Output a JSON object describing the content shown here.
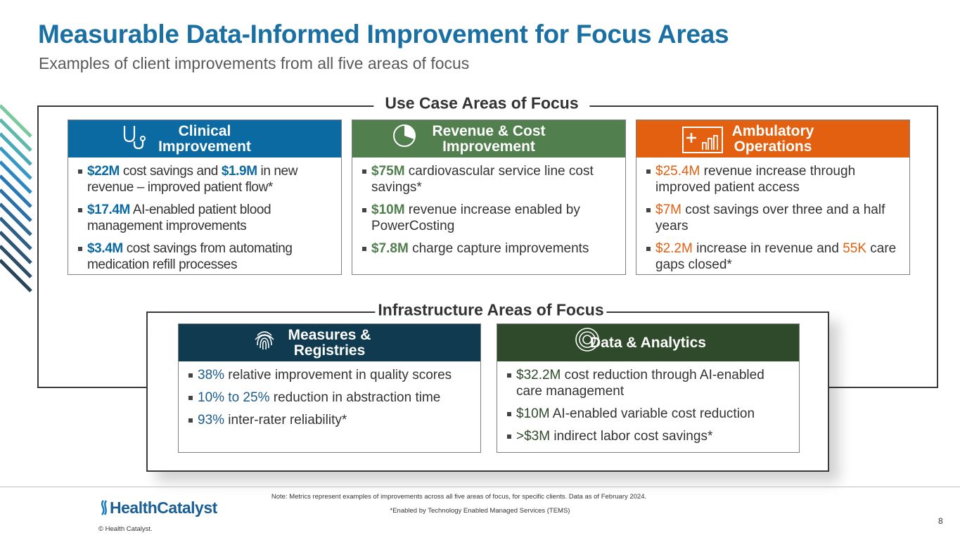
{
  "header": {
    "title": "Measurable Data-Informed Improvement for Focus Areas",
    "subtitle": "Examples of client improvements from all five areas of focus"
  },
  "use_case": {
    "label": "Use Case Areas of Focus",
    "cards": [
      {
        "title": "Clinical Improvement",
        "bullets": [
          [
            {
              "text": "$22M",
              "hl": true
            },
            {
              "text": " cost savings and ",
              "hl": false
            },
            {
              "text": "$1.9M",
              "hl": true
            },
            {
              "text": " in new revenue – improved patient flow*",
              "hl": false
            }
          ],
          [
            {
              "text": "$17.4M",
              "hl": true
            },
            {
              "text": " AI-enabled patient blood management improvements",
              "hl": false
            }
          ],
          [
            {
              "text": "$3.4M",
              "hl": true
            },
            {
              "text": " cost savings from automating medication refill processes",
              "hl": false
            }
          ]
        ]
      },
      {
        "title": "Revenue & Cost Improvement",
        "bullets": [
          [
            {
              "text": "$75M",
              "hl": true
            },
            {
              "text": " cardiovascular service line cost savings*",
              "hl": false
            }
          ],
          [
            {
              "text": "$10M",
              "hl": true
            },
            {
              "text": " revenue increase enabled by PowerCosting",
              "hl": false
            }
          ],
          [
            {
              "text": "$7.8M",
              "hl": true
            },
            {
              "text": " charge capture improvements",
              "hl": false
            }
          ]
        ]
      },
      {
        "title": "Ambulatory Operations",
        "bullets": [
          [
            {
              "text": "$25.4M",
              "hl": true
            },
            {
              "text": " revenue increase through improved patient access",
              "hl": false
            }
          ],
          [
            {
              "text": "$7M",
              "hl": true
            },
            {
              "text": " cost savings over three and a half years",
              "hl": false
            }
          ],
          [
            {
              "text": "$2.2M",
              "hl": true
            },
            {
              "text": " increase in revenue and ",
              "hl": false
            },
            {
              "text": "55K",
              "hl": true
            },
            {
              "text": " care gaps closed*",
              "hl": false
            }
          ]
        ]
      }
    ]
  },
  "infrastructure": {
    "label": "Infrastructure Areas of Focus",
    "cards": [
      {
        "title": "Measures & Registries",
        "bullets": [
          [
            {
              "text": "38%",
              "hl": true
            },
            {
              "text": " relative improvement in quality scores",
              "hl": false
            }
          ],
          [
            {
              "text": "10% to 25%",
              "hl": true
            },
            {
              "text": " reduction in abstraction time",
              "hl": false
            }
          ],
          [
            {
              "text": "93%",
              "hl": true
            },
            {
              "text": " inter-rater reliability*",
              "hl": false
            }
          ]
        ]
      },
      {
        "title": "Data & Analytics",
        "bullets": [
          [
            {
              "text": "$32.2M",
              "hl": true
            },
            {
              "text": " cost reduction through AI-enabled care management",
              "hl": false
            }
          ],
          [
            {
              "text": "$10M",
              "hl": true
            },
            {
              "text": " AI-enabled variable cost reduction",
              "hl": false
            }
          ],
          [
            {
              "text": ">$3M",
              "hl": true
            },
            {
              "text": " indirect labor cost savings*",
              "hl": false
            }
          ]
        ]
      }
    ]
  },
  "footer": {
    "note": "Note: Metrics represent examples of improvements across all five areas of focus, for specific clients. Data as of February 2024.",
    "tems": "*Enabled by Technology Enabled Managed Services (TEMS)",
    "logo": "HealthCatalyst",
    "copyright": "© Health Catalyst.",
    "page": "8"
  }
}
